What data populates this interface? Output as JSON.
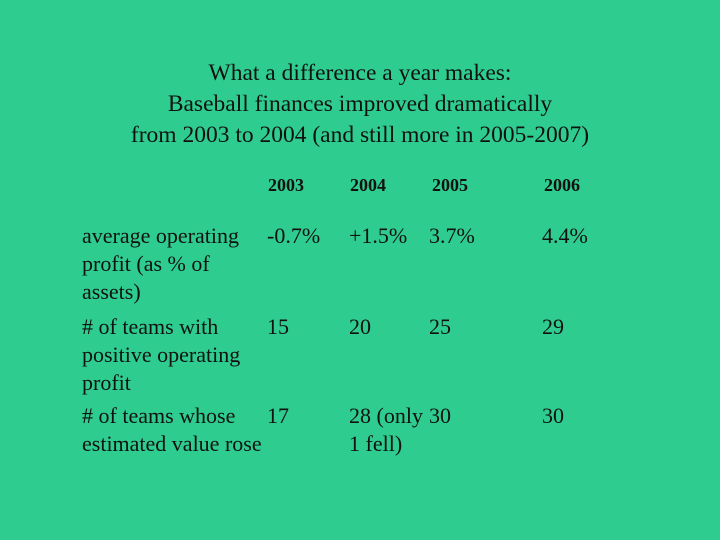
{
  "title": {
    "line1": "What a difference a year makes:",
    "line2": "Baseball finances improved dramatically",
    "line3": "from 2003 to 2004 (and still more in 2005-2007)"
  },
  "table": {
    "headers": [
      "2003",
      "2004",
      "2005",
      "2006"
    ],
    "rows": [
      {
        "label": "average operating profit (as % of assets)",
        "values": [
          "-0.7%",
          "+1.5%",
          "3.7%",
          "4.4%"
        ]
      },
      {
        "label": "# of teams with positive operating profit",
        "values": [
          "15",
          "20",
          "25",
          "29"
        ]
      },
      {
        "label": "# of teams whose estimated value rose",
        "values": [
          "17",
          "28 (only 1 fell)",
          "30",
          "30"
        ]
      }
    ]
  },
  "colors": {
    "background": "#2ecc8f",
    "text": "#111111"
  }
}
